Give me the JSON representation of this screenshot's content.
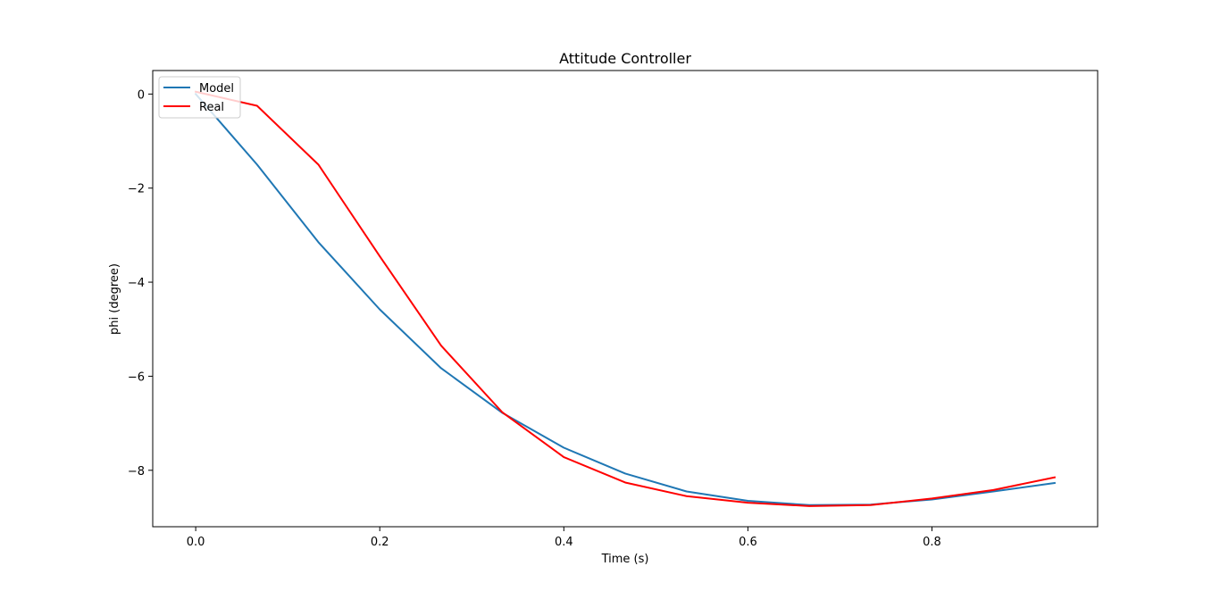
{
  "chart_data": {
    "type": "line",
    "title": "Attitude Controller",
    "xlabel": "Time (s)",
    "ylabel": "phi (degree)",
    "xlim": [
      -0.0467,
      0.98
    ],
    "ylim": [
      -9.2,
      0.5
    ],
    "xticks": [
      0.0,
      0.2,
      0.4,
      0.6,
      0.8
    ],
    "xtick_labels": [
      "0.0",
      "0.2",
      "0.4",
      "0.6",
      "0.8"
    ],
    "yticks": [
      0,
      -2,
      -4,
      -6,
      -8
    ],
    "ytick_labels": [
      "0",
      "−2",
      "−4",
      "−6",
      "−8"
    ],
    "grid": false,
    "legend_position": "top-left",
    "x": [
      0.0,
      0.0667,
      0.1333,
      0.2,
      0.2667,
      0.3333,
      0.4,
      0.4667,
      0.5333,
      0.6,
      0.6667,
      0.7333,
      0.8,
      0.8667,
      0.9333
    ],
    "series": [
      {
        "name": "Model",
        "color": "#1f77b4",
        "values": [
          0.0,
          -1.5,
          -3.15,
          -4.58,
          -5.83,
          -6.78,
          -7.52,
          -8.07,
          -8.45,
          -8.65,
          -8.74,
          -8.73,
          -8.62,
          -8.45,
          -8.27
        ]
      },
      {
        "name": "Real",
        "color": "#ff0000",
        "values": [
          0.05,
          -0.25,
          -1.5,
          -3.45,
          -5.35,
          -6.77,
          -7.72,
          -8.26,
          -8.55,
          -8.69,
          -8.76,
          -8.74,
          -8.6,
          -8.42,
          -8.15
        ]
      }
    ]
  }
}
